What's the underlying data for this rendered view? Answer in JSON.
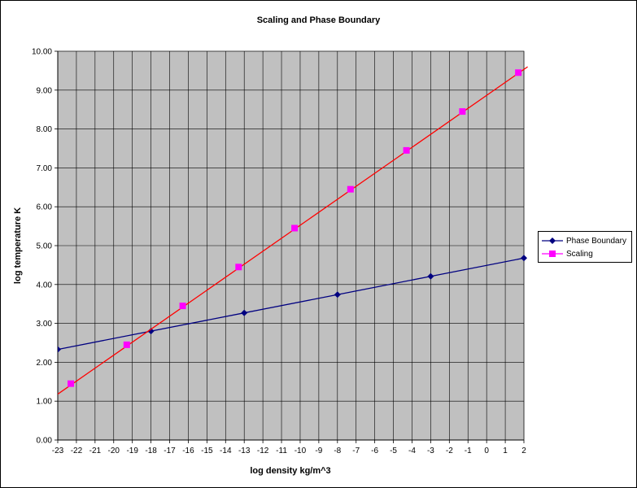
{
  "chart_data": {
    "type": "line",
    "title": "Scaling and Phase Boundary",
    "xlabel": "log density kg/m^3",
    "ylabel": "log temperature K",
    "xlim": [
      -23,
      2
    ],
    "ylim": [
      0,
      10
    ],
    "x_ticks": [
      "-23",
      "-22",
      "-21",
      "-20",
      "-19",
      "-18",
      "-17",
      "-16",
      "-15",
      "-14",
      "-13",
      "-12",
      "-11",
      "-10",
      "-9",
      "-8",
      "-7",
      "-6",
      "-5",
      "-4",
      "-3",
      "-2",
      "-1",
      "0",
      "1",
      "2"
    ],
    "y_ticks": [
      "0.00",
      "1.00",
      "2.00",
      "3.00",
      "4.00",
      "5.00",
      "6.00",
      "7.00",
      "8.00",
      "9.00",
      "10.00"
    ],
    "grid": true,
    "legend_position": "right",
    "series": [
      {
        "name": "Phase Boundary",
        "color": "#000080",
        "marker": "diamond",
        "x": [
          -23,
          -18,
          -13,
          -8,
          -3,
          2
        ],
        "y": [
          2.33,
          2.8,
          3.27,
          3.74,
          4.21,
          4.68
        ]
      },
      {
        "name": "Scaling",
        "color": "#ff00ff",
        "line_color": "#ff0000",
        "marker": "square",
        "x": [
          -22.3,
          -19.3,
          -16.3,
          -13.3,
          -10.3,
          -7.3,
          -4.3,
          -1.3,
          1.7
        ],
        "y": [
          1.45,
          2.45,
          3.45,
          4.45,
          5.45,
          6.45,
          7.45,
          8.45,
          9.45
        ],
        "fit_line": {
          "x": [
            -23.0,
            2.2
          ],
          "y": [
            1.18,
            9.6
          ]
        }
      }
    ]
  }
}
